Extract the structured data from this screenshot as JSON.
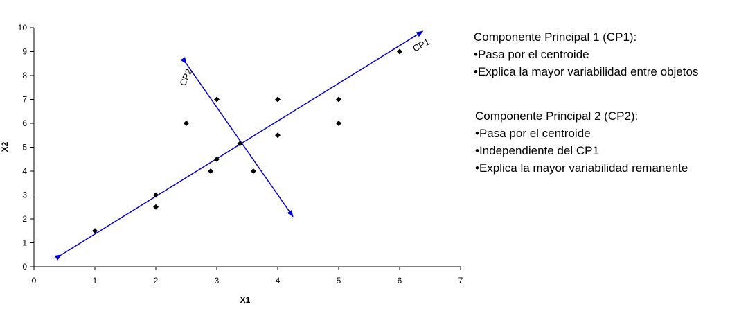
{
  "chart_data": {
    "type": "scatter",
    "xlabel": "X1",
    "ylabel": "X2",
    "xlim": [
      0,
      7
    ],
    "ylim": [
      0,
      10
    ],
    "x_ticks": [
      0,
      1,
      2,
      3,
      4,
      5,
      6,
      7
    ],
    "y_ticks": [
      0,
      1,
      2,
      3,
      4,
      5,
      6,
      7,
      8,
      9,
      10
    ],
    "grid": false,
    "points": [
      {
        "x": 1,
        "y": 1.5
      },
      {
        "x": 2,
        "y": 3
      },
      {
        "x": 2,
        "y": 2.5
      },
      {
        "x": 2.5,
        "y": 6
      },
      {
        "x": 2.9,
        "y": 4
      },
      {
        "x": 3,
        "y": 4.5
      },
      {
        "x": 3,
        "y": 7
      },
      {
        "x": 3.6,
        "y": 4
      },
      {
        "x": 4,
        "y": 7
      },
      {
        "x": 4,
        "y": 5.5
      },
      {
        "x": 5,
        "y": 7
      },
      {
        "x": 5,
        "y": 6
      },
      {
        "x": 6,
        "y": 9
      }
    ],
    "centroid": {
      "x": 3.38,
      "y": 5.15
    },
    "axes": [
      {
        "name": "CP1",
        "start": {
          "x": 0.45,
          "y": 0.5
        },
        "end": {
          "x": 6.38,
          "y": 9.85
        },
        "color": "#0000cc"
      },
      {
        "name": "CP2",
        "start": {
          "x": 2.5,
          "y": 8.5
        },
        "end": {
          "x": 4.25,
          "y": 2.1
        },
        "color": "#0000cc"
      }
    ]
  },
  "notes": {
    "cp1": {
      "title": "Componente Principal 1 (CP1):",
      "items": [
        "•Pasa por el centroide",
        "•Explica la mayor variabilidad entre objetos"
      ]
    },
    "cp2": {
      "title": "Componente Principal 2 (CP2):",
      "items": [
        "•Pasa por el centroide",
        "•Independiente del CP1",
        "•Explica la mayor variabilidad remanente"
      ]
    }
  }
}
